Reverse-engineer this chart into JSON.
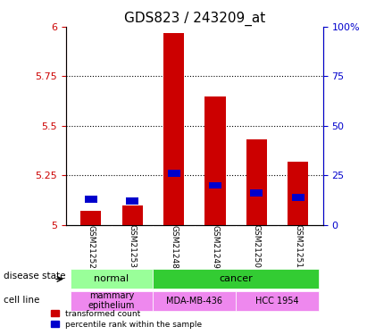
{
  "title": "GDS823 / 243209_at",
  "samples": [
    "GSM21252",
    "GSM21253",
    "GSM21248",
    "GSM21249",
    "GSM21250",
    "GSM21251"
  ],
  "transformed_count": [
    5.07,
    5.1,
    5.97,
    5.65,
    5.43,
    5.32
  ],
  "percentile_rank": [
    13,
    12,
    26,
    20,
    16,
    14
  ],
  "ylim_left": [
    5.0,
    6.0
  ],
  "ylim_right": [
    0,
    100
  ],
  "yticks_left": [
    5.0,
    5.25,
    5.5,
    5.75,
    6.0
  ],
  "ytick_labels_left": [
    "5",
    "5.25",
    "5.5",
    "5.75",
    "6"
  ],
  "yticks_right": [
    0,
    25,
    50,
    75,
    100
  ],
  "ytick_labels_right": [
    "0",
    "25",
    "50",
    "75",
    "100%"
  ],
  "bar_color": "#cc0000",
  "percentile_color": "#0000cc",
  "bar_width": 0.5,
  "disease_state": [
    {
      "label": "normal",
      "samples": [
        0,
        1
      ],
      "color": "#99ff99"
    },
    {
      "label": "cancer",
      "samples": [
        2,
        3,
        4,
        5
      ],
      "color": "#33cc33"
    }
  ],
  "cell_line": [
    {
      "label": "mammary\nepithelium",
      "samples": [
        0,
        1
      ],
      "color": "#ee88ee"
    },
    {
      "label": "MDA-MB-436",
      "samples": [
        2,
        3
      ],
      "color": "#ee88ee"
    },
    {
      "label": "HCC 1954",
      "samples": [
        4,
        5
      ],
      "color": "#ee88ee"
    }
  ],
  "legend_items": [
    {
      "label": "transformed count",
      "color": "#cc0000"
    },
    {
      "label": "percentile rank within the sample",
      "color": "#0000cc"
    }
  ],
  "grid_color": "#000000",
  "axis_color": "#000000",
  "left_axis_color": "#cc0000",
  "right_axis_color": "#0000cc",
  "bg_color": "#ffffff",
  "plot_bg_color": "#ffffff",
  "tick_area_bg": "#cccccc"
}
